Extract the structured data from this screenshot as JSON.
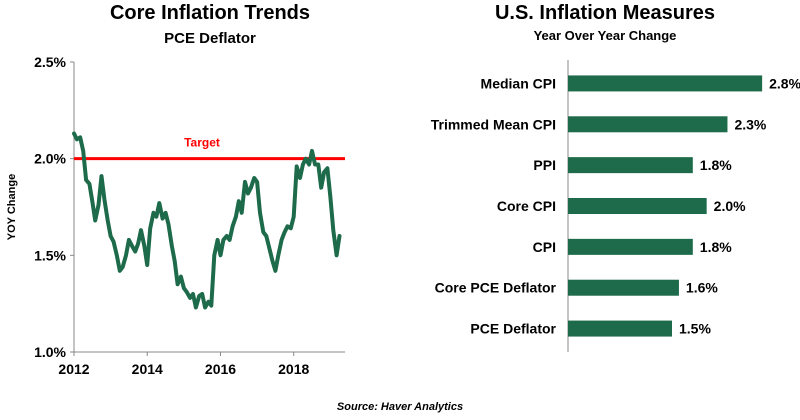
{
  "left_chart": {
    "title": "Core Inflation Trends",
    "subtitle": "PCE Deflator",
    "ylabel": "YOY Change",
    "target_label": "Target",
    "line_color": "#1d6b4a",
    "target_color": "#ff0000"
  },
  "right_chart": {
    "title": "U.S. Inflation Measures",
    "subtitle": "Year Over Year Change",
    "bar_color": "#1d6b4a"
  },
  "source": "Source: Haver Analytics",
  "chart_data": [
    {
      "type": "line",
      "title": "Core Inflation Trends",
      "subtitle": "PCE Deflator",
      "xlabel": "",
      "ylabel": "YOY Change",
      "xlim": [
        2012,
        2019.4
      ],
      "ylim": [
        1.0,
        2.5
      ],
      "xticks": [
        "2012",
        "2014",
        "2016",
        "2018"
      ],
      "yticks": [
        "1.0%",
        "1.5%",
        "2.0%",
        "2.5%"
      ],
      "grid": false,
      "target": {
        "label": "Target",
        "value": 2.0
      },
      "series": [
        {
          "x": [
            2012.0,
            2012.08,
            2012.17,
            2012.25,
            2012.33,
            2012.42,
            2012.5,
            2012.58,
            2012.67,
            2012.75,
            2012.83,
            2012.92,
            2013.0,
            2013.08,
            2013.17,
            2013.25,
            2013.33,
            2013.42,
            2013.5,
            2013.58,
            2013.67,
            2013.75,
            2013.83,
            2013.92,
            2014.0,
            2014.08,
            2014.17,
            2014.25,
            2014.33,
            2014.42,
            2014.5,
            2014.58,
            2014.67,
            2014.75,
            2014.83,
            2014.92,
            2015.0,
            2015.08,
            2015.17,
            2015.25,
            2015.33,
            2015.42,
            2015.5,
            2015.58,
            2015.67,
            2015.75,
            2015.83,
            2015.92,
            2016.0,
            2016.08,
            2016.17,
            2016.25,
            2016.33,
            2016.42,
            2016.5,
            2016.58,
            2016.67,
            2016.75,
            2016.83,
            2016.92,
            2017.0,
            2017.08,
            2017.17,
            2017.25,
            2017.33,
            2017.42,
            2017.5,
            2017.58,
            2017.67,
            2017.75,
            2017.83,
            2017.92,
            2018.0,
            2018.08,
            2018.17,
            2018.25,
            2018.33,
            2018.42,
            2018.5,
            2018.58,
            2018.67,
            2018.75,
            2018.83,
            2018.92,
            2019.0,
            2019.08,
            2019.17,
            2019.25
          ],
          "values": [
            2.13,
            2.1,
            2.11,
            2.04,
            1.89,
            1.87,
            1.78,
            1.68,
            1.76,
            1.91,
            1.79,
            1.68,
            1.6,
            1.57,
            1.5,
            1.42,
            1.44,
            1.5,
            1.58,
            1.55,
            1.52,
            1.56,
            1.63,
            1.55,
            1.45,
            1.64,
            1.72,
            1.7,
            1.77,
            1.69,
            1.72,
            1.66,
            1.55,
            1.47,
            1.35,
            1.39,
            1.33,
            1.31,
            1.28,
            1.3,
            1.23,
            1.29,
            1.3,
            1.23,
            1.26,
            1.24,
            1.5,
            1.58,
            1.5,
            1.58,
            1.6,
            1.58,
            1.65,
            1.7,
            1.78,
            1.72,
            1.88,
            1.82,
            1.85,
            1.9,
            1.88,
            1.72,
            1.62,
            1.6,
            1.54,
            1.47,
            1.42,
            1.5,
            1.58,
            1.62,
            1.65,
            1.64,
            1.7,
            1.96,
            1.9,
            1.97,
            2.0,
            1.97,
            2.04,
            1.97,
            1.97,
            1.85,
            1.93,
            1.95,
            1.8,
            1.63,
            1.5,
            1.6
          ]
        }
      ]
    },
    {
      "type": "bar",
      "orientation": "horizontal",
      "title": "U.S. Inflation Measures",
      "subtitle": "Year Over Year Change",
      "categories": [
        "Median CPI",
        "Trimmed Mean CPI",
        "PPI",
        "Core CPI",
        "CPI",
        "Core PCE Deflator",
        "PCE Deflator"
      ],
      "values": [
        2.8,
        2.3,
        1.8,
        2.0,
        1.8,
        1.6,
        1.5
      ],
      "value_labels": [
        "2.8%",
        "2.3%",
        "1.8%",
        "2.0%",
        "1.8%",
        "1.6%",
        "1.5%"
      ],
      "xlim": [
        0,
        3.0
      ]
    }
  ]
}
